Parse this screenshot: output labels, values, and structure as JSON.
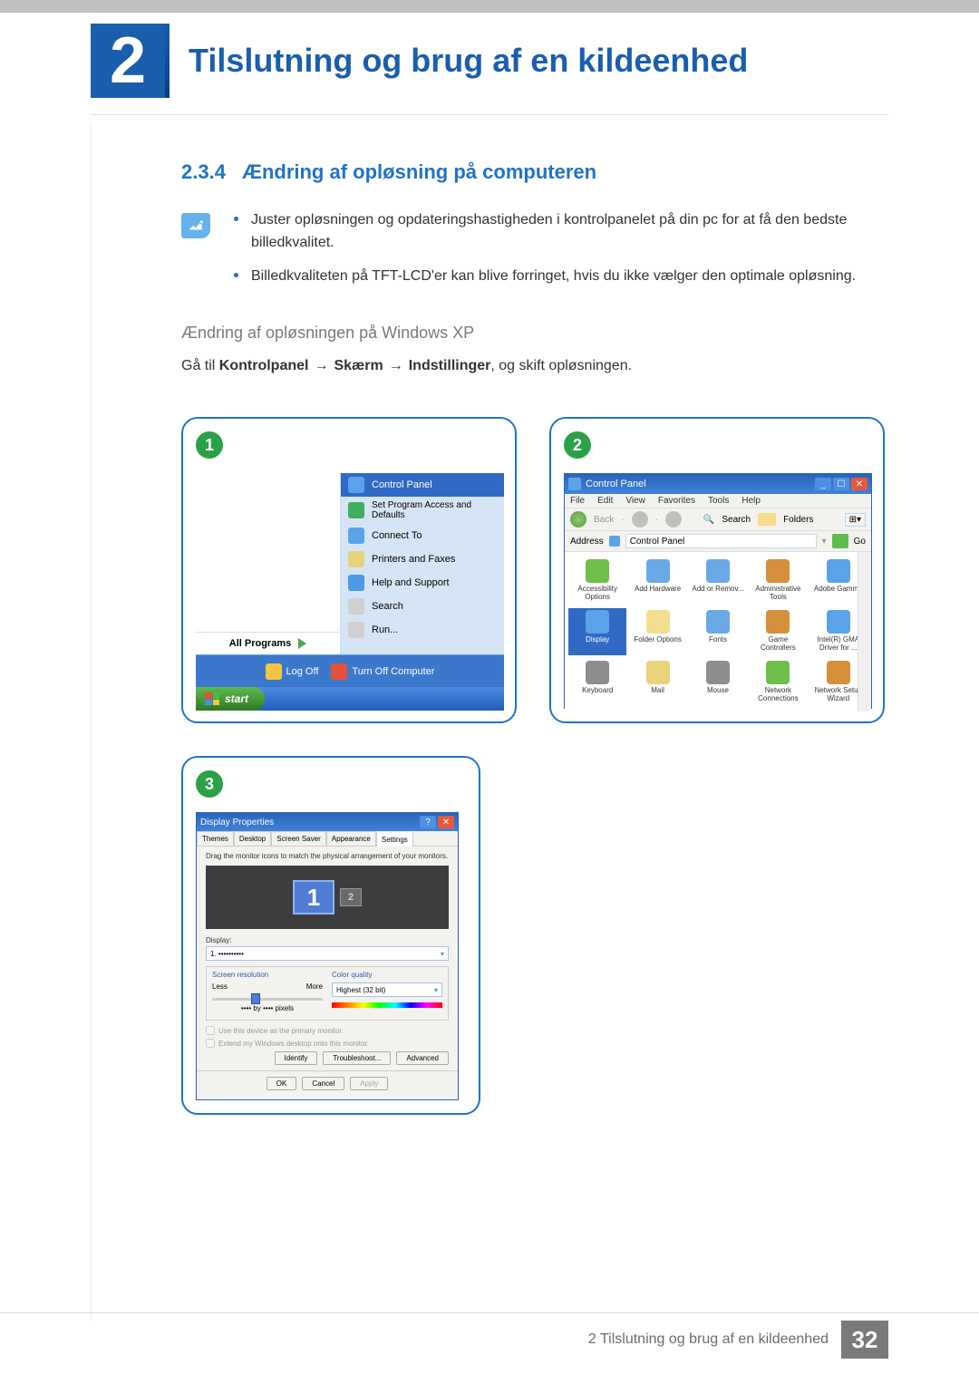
{
  "chapter": {
    "num": "2",
    "title": "Tilslutning og brug af en kildeenhed"
  },
  "section": {
    "num": "2.3.4",
    "title": "Ændring af opløsning på computeren"
  },
  "notes": [
    "Juster opløsningen og opdateringshastigheden i kontrolpanelet på din pc for at få den bedste billedkvalitet.",
    "Billedkvaliteten på TFT-LCD'er kan blive forringet, hvis du ikke vælger den optimale opløsning."
  ],
  "sub": "Ændring af opløsningen på Windows XP",
  "instr": {
    "pre": "Gå til ",
    "p1": "Kontrolpanel",
    "p2": "Skærm",
    "p3": "Indstillinger",
    "post": ", og skift opløsningen.",
    "arrow": "→"
  },
  "colors": {
    "accent": "#2074c4",
    "frame": "#1a5eae",
    "green": "#2aa147",
    "xpBlue": "#3b78cc",
    "xpSel": "#316ac5"
  },
  "s1": {
    "items": [
      {
        "ico": "#5aa3e8",
        "t": "Control Panel",
        "sel": true
      },
      {
        "ico": "#3fae5e",
        "t": "Set Program Access and Defaults",
        "sub": true
      },
      {
        "ico": "#5aa3e8",
        "t": "Connect To"
      },
      {
        "ico": "#e8d27a",
        "t": "Printers and Faxes"
      },
      {
        "ico": "#4d9be6",
        "t": "Help and Support"
      },
      {
        "ico": "#cfcfcf",
        "t": "Search"
      },
      {
        "ico": "#cfcfcf",
        "t": "Run..."
      }
    ],
    "allPrograms": "All Programs",
    "logoff": "Log Off",
    "power": "Turn Off Computer",
    "start": "start"
  },
  "s2": {
    "title": "Control Panel",
    "menu": [
      "File",
      "Edit",
      "View",
      "Favorites",
      "Tools",
      "Help"
    ],
    "back": "Back",
    "search": "Search",
    "folders": "Folders",
    "addrLabel": "Address",
    "addr": "Control Panel",
    "go": "Go",
    "items": [
      {
        "c": "#6fbf4a",
        "t": "Accessibility Options"
      },
      {
        "c": "#6aa9e6",
        "t": "Add Hardware"
      },
      {
        "c": "#6aa9e6",
        "t": "Add or Remov..."
      },
      {
        "c": "#d68f3a",
        "t": "Administrative Tools"
      },
      {
        "c": "#5aa3e8",
        "t": "Adobe Gamma"
      },
      {
        "c": "#5aa3e8",
        "t": "Display",
        "sel": true
      },
      {
        "c": "#f4dd8e",
        "t": "Folder Options"
      },
      {
        "c": "#6aa9e6",
        "t": "Fonts"
      },
      {
        "c": "#d68f3a",
        "t": "Game Controllers"
      },
      {
        "c": "#5aa3e8",
        "t": "Intel(R) GMA Driver for ..."
      },
      {
        "c": "#8e8e8e",
        "t": "Keyboard"
      },
      {
        "c": "#e8d27a",
        "t": "Mail"
      },
      {
        "c": "#8e8e8e",
        "t": "Mouse"
      },
      {
        "c": "#6fbf4a",
        "t": "Network Connections"
      },
      {
        "c": "#d68f3a",
        "t": "Network Setup Wizard"
      }
    ]
  },
  "s3": {
    "title": "Display Properties",
    "tabs": [
      "Themes",
      "Desktop",
      "Screen Saver",
      "Appearance",
      "Settings"
    ],
    "hint": "Drag the monitor icons to match the physical arrangement of your monitors.",
    "mon1": "1",
    "mon2": "2",
    "displayLbl": "Display:",
    "displayVal": "1. ••••••••••",
    "resGroup": "Screen resolution",
    "less": "Less",
    "more": "More",
    "resTxt": "•••• by •••• pixels",
    "colGroup": "Color quality",
    "colVal": "Highest (32 bit)",
    "ck1": "Use this device as the primary monitor.",
    "ck2": "Extend my Windows desktop onto this monitor.",
    "identBtn": "Identify",
    "trouBtn": "Troubleshoot...",
    "advBtn": "Advanced",
    "ok": "OK",
    "cancel": "Cancel",
    "apply": "Apply"
  },
  "footer": {
    "text": "2 Tilslutning og brug af en kildeenhed",
    "page": "32"
  }
}
